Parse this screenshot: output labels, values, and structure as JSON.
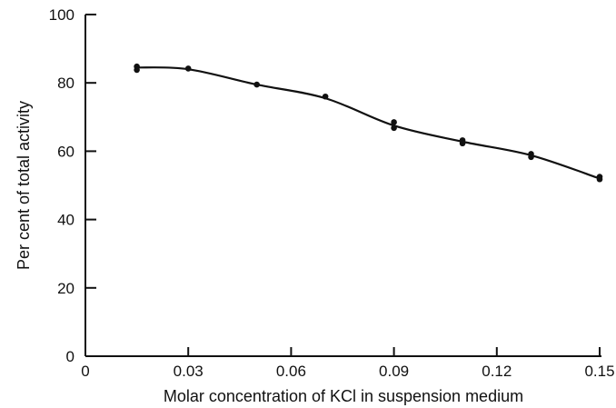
{
  "chart_data": {
    "type": "line",
    "title": "",
    "xlabel": "Molar concentration of KCl in suspension medium",
    "ylabel": "Per cent of total activity",
    "xlim": [
      0,
      0.15
    ],
    "ylim": [
      0,
      100
    ],
    "x_ticks": [
      0,
      0.03,
      0.06,
      0.09,
      0.12,
      0.15
    ],
    "x_tick_labels": [
      "0",
      "0.03",
      "0.06",
      "0.09",
      "0.12",
      "0.15"
    ],
    "y_ticks": [
      0,
      20,
      40,
      60,
      80,
      100
    ],
    "y_tick_labels": [
      "0",
      "20",
      "40",
      "60",
      "80",
      "100"
    ],
    "grid": false,
    "points": [
      {
        "x": 0.015,
        "y": 84.8
      },
      {
        "x": 0.015,
        "y": 83.8
      },
      {
        "x": 0.03,
        "y": 84.2
      },
      {
        "x": 0.05,
        "y": 79.5
      },
      {
        "x": 0.07,
        "y": 76.0
      },
      {
        "x": 0.09,
        "y": 68.5
      },
      {
        "x": 0.09,
        "y": 66.8
      },
      {
        "x": 0.11,
        "y": 63.2
      },
      {
        "x": 0.11,
        "y": 62.3
      },
      {
        "x": 0.13,
        "y": 59.2
      },
      {
        "x": 0.13,
        "y": 58.3
      },
      {
        "x": 0.15,
        "y": 52.5
      },
      {
        "x": 0.15,
        "y": 51.8
      }
    ],
    "curve": {
      "x": [
        0.015,
        0.03,
        0.05,
        0.07,
        0.09,
        0.11,
        0.13,
        0.15
      ],
      "y": [
        84.5,
        84.0,
        79.5,
        75.5,
        67.5,
        62.8,
        58.8,
        52.0
      ]
    }
  }
}
